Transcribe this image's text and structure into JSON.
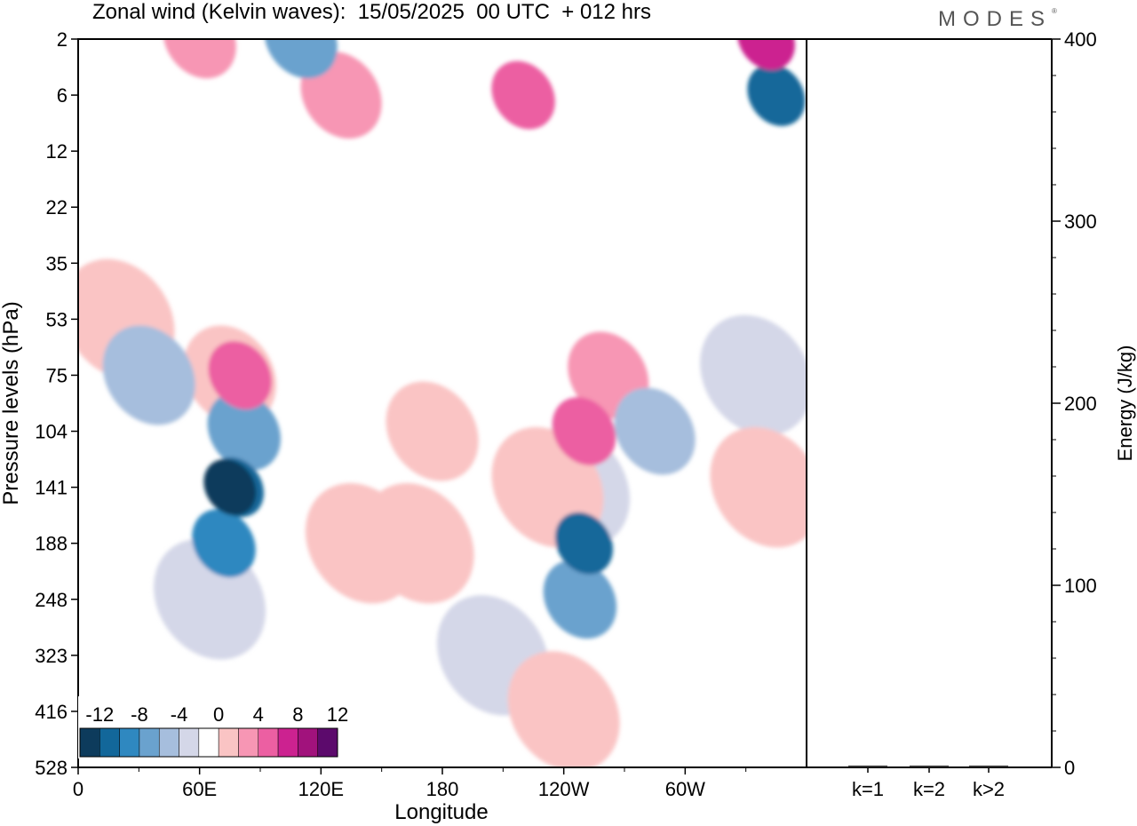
{
  "chart_data": {
    "type": "heatmap",
    "title": "Zonal wind (Kelvin waves):  15/05/2025  00 UTC  + 012 hrs",
    "xlabel": "Longitude",
    "ylabel": "Pressure levels (hPa)",
    "x_ticks": [
      "0",
      "60E",
      "120E",
      "180",
      "120W",
      "60W"
    ],
    "x_range": [
      0,
      360
    ],
    "y_ticks": [
      "2",
      "6",
      "12",
      "22",
      "35",
      "53",
      "75",
      "104",
      "141",
      "188",
      "248",
      "323",
      "416",
      "528"
    ],
    "colorbar": {
      "tick_labels": [
        "-12",
        "-8",
        "-4",
        "0",
        "4",
        "8",
        "12"
      ],
      "levels": [
        -14,
        -12,
        -10,
        -8,
        -6,
        -4,
        -2,
        2,
        4,
        6,
        8,
        10,
        12,
        14
      ],
      "colors": [
        "#0d3b5c",
        "#12679a",
        "#2f88c0",
        "#6aa2ce",
        "#a6bedd",
        "#d4d7e8",
        "#ffffff",
        "#fac4c4",
        "#f796b4",
        "#ec5fa2",
        "#cc2290",
        "#a1127c",
        "#5c0a6c"
      ]
    },
    "cells": [
      {
        "lon": 75,
        "lev": "141",
        "value": -13
      },
      {
        "lon": 78,
        "lev": "141",
        "value": -11
      },
      {
        "lon": 72,
        "lev": "188",
        "value": -8
      },
      {
        "lon": 82,
        "lev": "104",
        "value": -6
      },
      {
        "lon": 65,
        "lev": "248",
        "value": -3
      },
      {
        "lon": 80,
        "lev": "75",
        "value": 8
      },
      {
        "lon": 75,
        "lev": "75",
        "value": 4
      },
      {
        "lon": 140,
        "lev": "188",
        "value": 3
      },
      {
        "lon": 250,
        "lev": "188",
        "value": -10
      },
      {
        "lon": 248,
        "lev": "248",
        "value": -6
      },
      {
        "lon": 245,
        "lev": "141",
        "value": -3
      },
      {
        "lon": 250,
        "lev": "104",
        "value": 8
      },
      {
        "lon": 262,
        "lev": "75",
        "value": 5
      },
      {
        "lon": 232,
        "lev": "141",
        "value": 3
      },
      {
        "lon": 175,
        "lev": "104",
        "value": 4
      },
      {
        "lon": 168,
        "lev": "188",
        "value": 3
      },
      {
        "lon": 285,
        "lev": "104",
        "value": -5
      },
      {
        "lon": 335,
        "lev": "75",
        "value": -2
      },
      {
        "lon": 345,
        "lev": "6",
        "value": -10
      },
      {
        "lon": 340,
        "lev": "2",
        "value": 10
      },
      {
        "lon": 220,
        "lev": "6",
        "value": 8
      },
      {
        "lon": 60,
        "lev": "2",
        "value": 6
      },
      {
        "lon": 110,
        "lev": "2",
        "value": -6
      },
      {
        "lon": 130,
        "lev": "6",
        "value": 5
      },
      {
        "lon": 35,
        "lev": "75",
        "value": -4
      },
      {
        "lon": 20,
        "lev": "53",
        "value": 3
      },
      {
        "lon": 340,
        "lev": "141",
        "value": 3
      },
      {
        "lon": 240,
        "lev": "416",
        "value": 3
      },
      {
        "lon": 205,
        "lev": "323",
        "value": -2
      }
    ],
    "energy_panel": {
      "ylabel": "Energy (J/kg)",
      "y_ticks": [
        "0",
        "100",
        "200",
        "300",
        "400"
      ],
      "ylim": [
        0,
        400
      ],
      "categories": [
        "k=1",
        "k=2",
        "k>2"
      ],
      "values": [
        0.5,
        0.5,
        0.5
      ]
    }
  },
  "brand": {
    "name": "MODES",
    "mark": "®"
  }
}
